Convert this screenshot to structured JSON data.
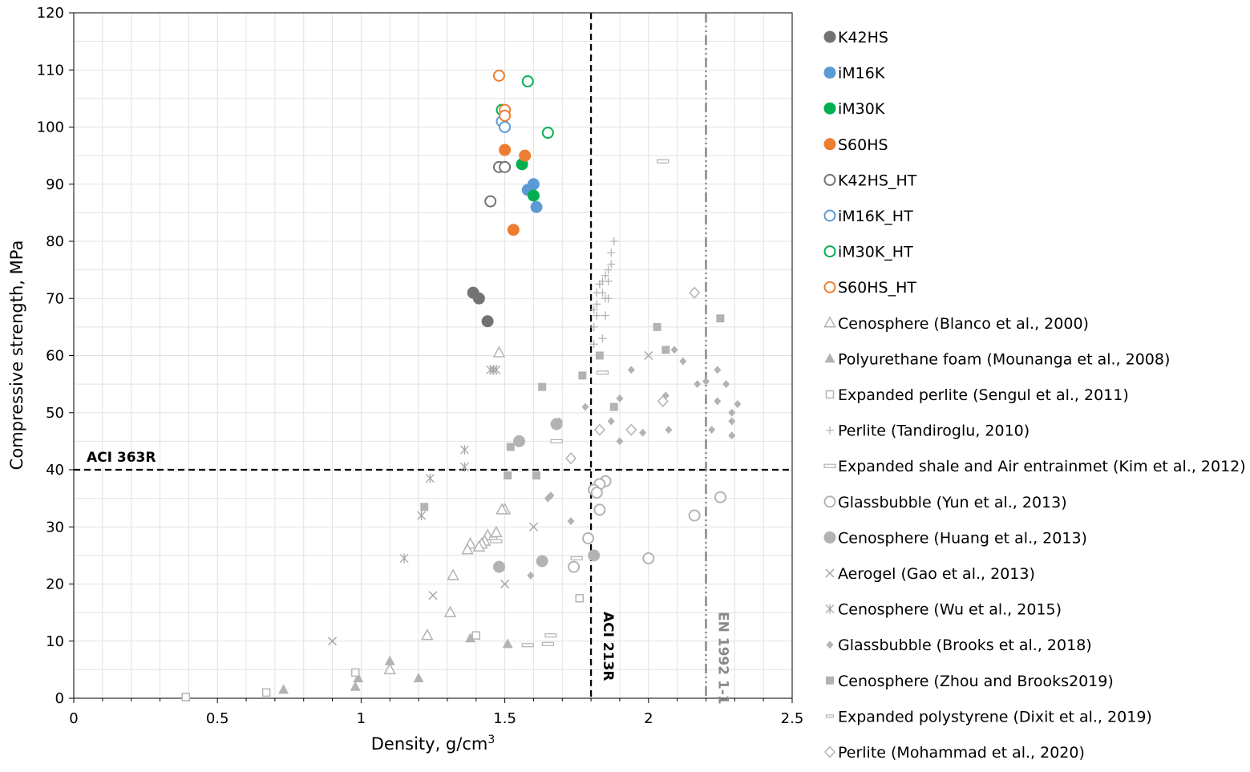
{
  "chart_data": {
    "type": "scatter",
    "title": "",
    "xlabel": "Density, g/cm",
    "xlabel_sup": "3",
    "ylabel": "Compressive strength, MPa",
    "xlim": [
      0,
      2.5
    ],
    "ylim": [
      0,
      120
    ],
    "x_ticks": [
      "0",
      "0.5",
      "1",
      "1.5",
      "2",
      "2.5"
    ],
    "y_ticks": [
      "0",
      "10",
      "20",
      "30",
      "40",
      "50",
      "60",
      "70",
      "80",
      "90",
      "100",
      "110",
      "120"
    ],
    "grid": "on (minor)",
    "legend_position": "right",
    "reference_lines": [
      {
        "label": "ACI 363R",
        "orientation": "horizontal",
        "value": 40,
        "color": "#000000",
        "style": "dashed"
      },
      {
        "label": "ACI 213R",
        "orientation": "vertical",
        "value": 1.8,
        "color": "#000000",
        "style": "dashed"
      },
      {
        "label": "EN 1992 1-1",
        "orientation": "vertical",
        "value": 2.2,
        "color": "#8a8a8a",
        "style": "dash-dot-dot"
      }
    ],
    "series": [
      {
        "name": "K42HS",
        "marker": "circle-filled",
        "color": "#737373",
        "points": [
          [
            1.39,
            71
          ],
          [
            1.41,
            70
          ],
          [
            1.44,
            66
          ]
        ]
      },
      {
        "name": "iM16K",
        "marker": "circle-filled",
        "color": "#5b9bd5",
        "points": [
          [
            1.58,
            89
          ],
          [
            1.6,
            90
          ],
          [
            1.61,
            86
          ]
        ]
      },
      {
        "name": "iM30K",
        "marker": "circle-filled",
        "color": "#00b050",
        "points": [
          [
            1.56,
            93.5
          ],
          [
            1.6,
            88
          ]
        ]
      },
      {
        "name": "S60HS",
        "marker": "circle-filled",
        "color": "#ed7d31",
        "points": [
          [
            1.5,
            96
          ],
          [
            1.57,
            95
          ],
          [
            1.53,
            82
          ]
        ]
      },
      {
        "name": "K42HS_HT",
        "marker": "circle-open",
        "color": "#737373",
        "points": [
          [
            1.48,
            93
          ],
          [
            1.5,
            93
          ],
          [
            1.45,
            87
          ]
        ]
      },
      {
        "name": "iM16K_HT",
        "marker": "circle-open",
        "color": "#5b9bd5",
        "points": [
          [
            1.49,
            101
          ],
          [
            1.5,
            100
          ]
        ]
      },
      {
        "name": "iM30K_HT",
        "marker": "circle-open",
        "color": "#00b050",
        "points": [
          [
            1.58,
            108
          ],
          [
            1.49,
            103
          ],
          [
            1.65,
            99
          ]
        ]
      },
      {
        "name": "S60HS_HT",
        "marker": "circle-open",
        "color": "#ed7d31",
        "points": [
          [
            1.48,
            109
          ],
          [
            1.5,
            103
          ],
          [
            1.5,
            102
          ]
        ]
      },
      {
        "name": "Cenosphere (Blanco et al., 2000)",
        "marker": "triangle-open",
        "color": "#b3b3b3",
        "points": [
          [
            1.48,
            60.5
          ],
          [
            1.5,
            33
          ],
          [
            1.49,
            33
          ],
          [
            1.47,
            29
          ],
          [
            1.44,
            28.5
          ],
          [
            1.43,
            27.5
          ],
          [
            1.42,
            27
          ],
          [
            1.41,
            26.5
          ],
          [
            1.38,
            27
          ],
          [
            1.37,
            26
          ],
          [
            1.32,
            21.5
          ],
          [
            1.31,
            15
          ],
          [
            1.23,
            11
          ],
          [
            1.1,
            5
          ]
        ]
      },
      {
        "name": "Polyurethane foam (Mounanga et al., 2008)",
        "marker": "triangle-filled",
        "color": "#b3b3b3",
        "points": [
          [
            0.73,
            1.5
          ],
          [
            0.98,
            2
          ],
          [
            0.99,
            3.5
          ],
          [
            1.1,
            6.5
          ],
          [
            1.2,
            3.5
          ],
          [
            1.38,
            10.5
          ],
          [
            1.51,
            9.5
          ]
        ]
      },
      {
        "name": "Expanded perlite (Sengul et al.,   2011)",
        "marker": "square-open",
        "color": "#b3b3b3",
        "points": [
          [
            0.39,
            0.2
          ],
          [
            0.67,
            1
          ],
          [
            0.98,
            4.5
          ],
          [
            1.4,
            11
          ],
          [
            1.76,
            17.5
          ]
        ]
      },
      {
        "name": "Perlite (Tandiroglu, 2010)",
        "marker": "plus",
        "color": "#b3b3b3",
        "points": [
          [
            1.88,
            80
          ],
          [
            1.87,
            78
          ],
          [
            1.87,
            76
          ],
          [
            1.86,
            75
          ],
          [
            1.85,
            74
          ],
          [
            1.86,
            73
          ],
          [
            1.84,
            73
          ],
          [
            1.83,
            72.5
          ],
          [
            1.82,
            71
          ],
          [
            1.84,
            71
          ],
          [
            1.86,
            70
          ],
          [
            1.85,
            70
          ],
          [
            1.82,
            69
          ],
          [
            1.81,
            68
          ],
          [
            1.82,
            67
          ],
          [
            1.85,
            67
          ],
          [
            1.81,
            65
          ],
          [
            1.84,
            63
          ],
          [
            1.81,
            62
          ]
        ]
      },
      {
        "name": "Expanded shale and Air entrainmet (Kim et al., 2012)",
        "marker": "dash",
        "color": "#b3b3b3",
        "points": [
          [
            2.05,
            94
          ],
          [
            1.84,
            57
          ],
          [
            1.68,
            45
          ],
          [
            1.47,
            27.5
          ],
          [
            1.75,
            24.5
          ],
          [
            1.66,
            11
          ],
          [
            1.65,
            9.5
          ],
          [
            1.58,
            9.3
          ]
        ]
      },
      {
        "name": "Glassbubble (Yun et al., 2013)",
        "marker": "circle-open",
        "color": "#b3b3b3",
        "points": [
          [
            1.85,
            38
          ],
          [
            1.83,
            37.5
          ],
          [
            1.81,
            36.5
          ],
          [
            1.82,
            36
          ],
          [
            1.83,
            33
          ],
          [
            1.79,
            28
          ],
          [
            1.74,
            23
          ],
          [
            2.0,
            24.5
          ],
          [
            2.16,
            32
          ],
          [
            2.25,
            35.2
          ]
        ]
      },
      {
        "name": "Cenosphere (Huang et al., 2013)",
        "marker": "circle-filled",
        "color": "#b3b3b3",
        "points": [
          [
            1.55,
            45
          ],
          [
            1.68,
            48
          ],
          [
            1.63,
            24
          ],
          [
            1.48,
            23
          ],
          [
            1.81,
            25
          ]
        ]
      },
      {
        "name": "Aerogel (Gao et al., 2013)",
        "marker": "x",
        "color": "#a6a6a6",
        "points": [
          [
            0.9,
            10
          ],
          [
            1.25,
            18
          ],
          [
            1.5,
            20
          ],
          [
            1.6,
            30
          ],
          [
            2.0,
            60
          ]
        ]
      },
      {
        "name": "Cenosphere (Wu et al., 2015)",
        "marker": "asterisk",
        "color": "#a6a6a6",
        "points": [
          [
            1.46,
            57.5
          ],
          [
            1.47,
            57.5
          ],
          [
            1.45,
            57.5
          ],
          [
            1.36,
            43.5
          ],
          [
            1.36,
            40.5
          ],
          [
            1.24,
            38.5
          ],
          [
            1.21,
            32
          ],
          [
            1.15,
            24.5
          ]
        ]
      },
      {
        "name": "Glassbubble (Brooks et al., 2018)",
        "marker": "diamond-filled",
        "color": "#b3b3b3",
        "points": [
          [
            2.09,
            61
          ],
          [
            2.12,
            59
          ],
          [
            1.94,
            57.5
          ],
          [
            2.24,
            57.5
          ],
          [
            2.2,
            55.5
          ],
          [
            2.17,
            55
          ],
          [
            2.27,
            55
          ],
          [
            2.06,
            53
          ],
          [
            1.9,
            52.5
          ],
          [
            2.24,
            52
          ],
          [
            2.31,
            51.5
          ],
          [
            1.78,
            51
          ],
          [
            2.29,
            50
          ],
          [
            1.69,
            48.5
          ],
          [
            1.87,
            48.5
          ],
          [
            2.29,
            48.5
          ],
          [
            2.07,
            47
          ],
          [
            2.22,
            47
          ],
          [
            1.98,
            46.5
          ],
          [
            2.29,
            46
          ],
          [
            1.9,
            45
          ],
          [
            1.66,
            35.5
          ],
          [
            1.65,
            35
          ],
          [
            1.73,
            31
          ],
          [
            1.59,
            21.5
          ]
        ]
      },
      {
        "name": "Cenosphere   (Zhou and Brooks2019)",
        "marker": "square-filled",
        "color": "#b3b3b3",
        "points": [
          [
            2.25,
            66.5
          ],
          [
            2.03,
            65
          ],
          [
            2.06,
            61
          ],
          [
            1.83,
            60
          ],
          [
            1.77,
            56.5
          ],
          [
            1.63,
            54.5
          ],
          [
            1.88,
            51
          ],
          [
            1.52,
            44
          ],
          [
            1.51,
            39
          ],
          [
            1.61,
            39
          ],
          [
            1.22,
            33.5
          ]
        ]
      },
      {
        "name": "Expanded polystyrene (Dixit et al., 2019)",
        "marker": "small-dash",
        "color": "#b3b3b3",
        "points": [
          [
            1.46,
            28
          ]
        ]
      },
      {
        "name": "Perlite (Mohammad et al., 2020)",
        "marker": "diamond-open",
        "color": "#b3b3b3",
        "points": [
          [
            2.16,
            71
          ],
          [
            2.05,
            52
          ],
          [
            1.83,
            47
          ],
          [
            1.94,
            47
          ],
          [
            1.73,
            42
          ]
        ]
      }
    ]
  }
}
